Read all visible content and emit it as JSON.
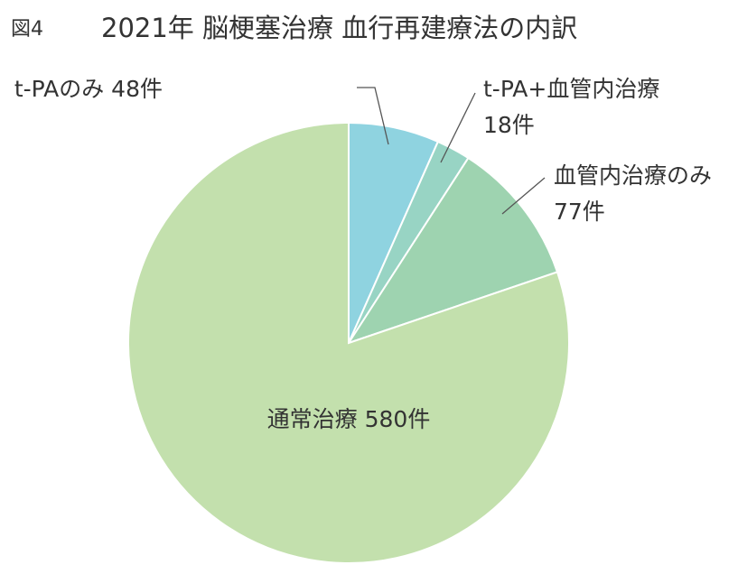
{
  "figure": {
    "label": "図4",
    "title": "2021年 脳梗塞治療 血行再建療法の内訳"
  },
  "chart_data": {
    "type": "pie",
    "title": "2021年 脳梗塞治療 血行再建療法の内訳",
    "unit": "件",
    "slices": [
      {
        "name": "t-PAのみ",
        "value": 48,
        "value_label": "48件",
        "color": "#8fd3e0"
      },
      {
        "name": "t-PA+血管内治療",
        "value": 18,
        "value_label": "18件",
        "color": "#98d4c4"
      },
      {
        "name": "血管内治療のみ",
        "value": 77,
        "value_label": "77件",
        "color": "#9ed3b0"
      },
      {
        "name": "通常治療",
        "value": 580,
        "value_label": "580件",
        "color": "#c3e0ad"
      }
    ],
    "start": "12 o'clock",
    "direction": "clockwise"
  }
}
